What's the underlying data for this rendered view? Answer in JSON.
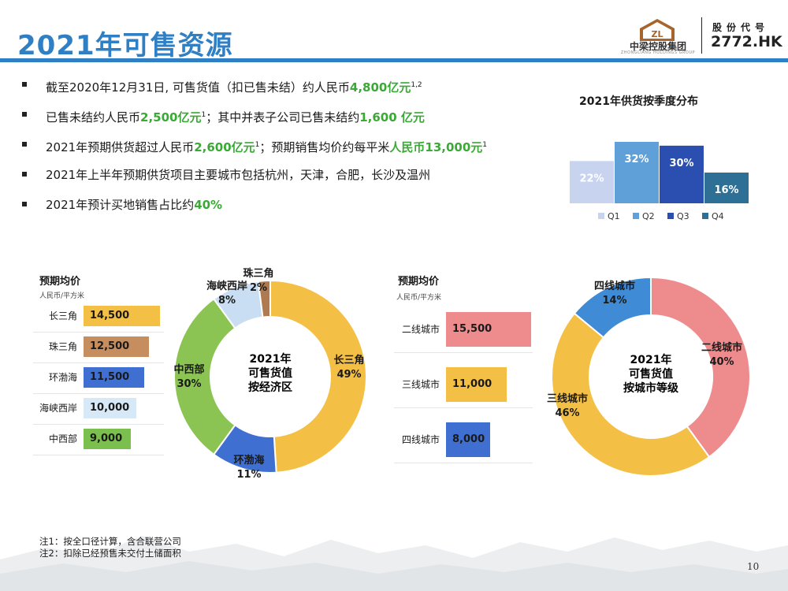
{
  "header": {
    "title": "2021年可售资源",
    "company_name": "中梁控股集团",
    "company_sub": "ZHONGLIANG HOLDINGS GROUP",
    "logo_mark": "ZL",
    "stock_label": "股份代号",
    "stock_code": "2772.HK"
  },
  "bullets": [
    {
      "pre": "截至2020年12月31日, 可售货值（扣已售未结）约人民币",
      "hl": "4,800亿元",
      "sup": "1,2",
      "post": ""
    },
    {
      "pre": "已售未结约人民币",
      "hl": "2,500亿元",
      "sup": "1",
      "post": "；其中并表子公司已售未结约",
      "hl2": "1,600 亿元"
    },
    {
      "pre": "2021年预期供货超过人民币",
      "hl": "2,600亿元",
      "sup": "1",
      "post": "；预期销售均价约每平米",
      "hl2": "人民币13,000元",
      "sup2": "1"
    },
    {
      "pre": "2021年上半年预期供货项目主要城市包括杭州，天津，合肥，长沙及温州"
    },
    {
      "pre": "2021年预计买地销售占比约",
      "hl": "40%"
    }
  ],
  "region_price": {
    "title": "预期均价",
    "unit": "人民币/平方米"
  },
  "tier_price": {
    "title": "预期均价",
    "unit": "人民币/平方米"
  },
  "region_donut": {
    "center_lines": [
      "2021年",
      "可售货值",
      "按经济区"
    ]
  },
  "tier_donut": {
    "center_lines": [
      "2021年",
      "可售货值",
      "按城市等级"
    ]
  },
  "notes": [
    "注1：按全口径计算，含合联营公司",
    "注2：扣除已经预售未交付土储面积"
  ],
  "page_number": "10",
  "chart_data": [
    {
      "type": "bar",
      "title": "2021年供货按季度分布",
      "categories": [
        "Q1",
        "Q2",
        "Q3",
        "Q4"
      ],
      "values": [
        22,
        32,
        30,
        16
      ],
      "value_labels": [
        "22%",
        "32%",
        "30%",
        "16%"
      ],
      "colors": [
        "#c7d3ef",
        "#5fa0d8",
        "#2a4fb0",
        "#2e6f96"
      ],
      "legend_position": "bottom"
    },
    {
      "type": "bar",
      "orientation": "horizontal",
      "categories": [
        "长三角",
        "珠三角",
        "环渤海",
        "海峡西岸",
        "中西部"
      ],
      "values": [
        14500,
        12500,
        11500,
        10000,
        9000
      ],
      "value_labels": [
        "14,500",
        "12,500",
        "11,500",
        "10,000",
        "9,000"
      ],
      "colors": [
        "#f4bf45",
        "#c68e5e",
        "#3f6fd1",
        "#d7e9f7",
        "#7bbf4e"
      ],
      "xlim": [
        0,
        15000
      ]
    },
    {
      "type": "pie",
      "donut": true,
      "labels": [
        "长三角",
        "环渤海",
        "中西部",
        "海峡西岸",
        "珠三角"
      ],
      "values": [
        49,
        11,
        30,
        8,
        2
      ],
      "value_labels": [
        "49%",
        "11%",
        "30%",
        "8%",
        "2%"
      ],
      "colors": [
        "#f4bf45",
        "#3f6fd1",
        "#8cc454",
        "#c9def2",
        "#b07a50"
      ]
    },
    {
      "type": "bar",
      "orientation": "horizontal",
      "categories": [
        "二线城市",
        "三线城市",
        "四线城市"
      ],
      "values": [
        15500,
        11000,
        8000
      ],
      "value_labels": [
        "15,500",
        "11,000",
        "8,000"
      ],
      "colors": [
        "#ee8b8c",
        "#f4bf45",
        "#3f6fd1"
      ],
      "xlim": [
        0,
        15500
      ]
    },
    {
      "type": "pie",
      "donut": true,
      "labels": [
        "二线城市",
        "三线城市",
        "四线城市"
      ],
      "values": [
        40,
        46,
        14
      ],
      "value_labels": [
        "40%",
        "46%",
        "14%"
      ],
      "colors": [
        "#ee8b8c",
        "#f4bf45",
        "#3f8bd6"
      ]
    }
  ]
}
